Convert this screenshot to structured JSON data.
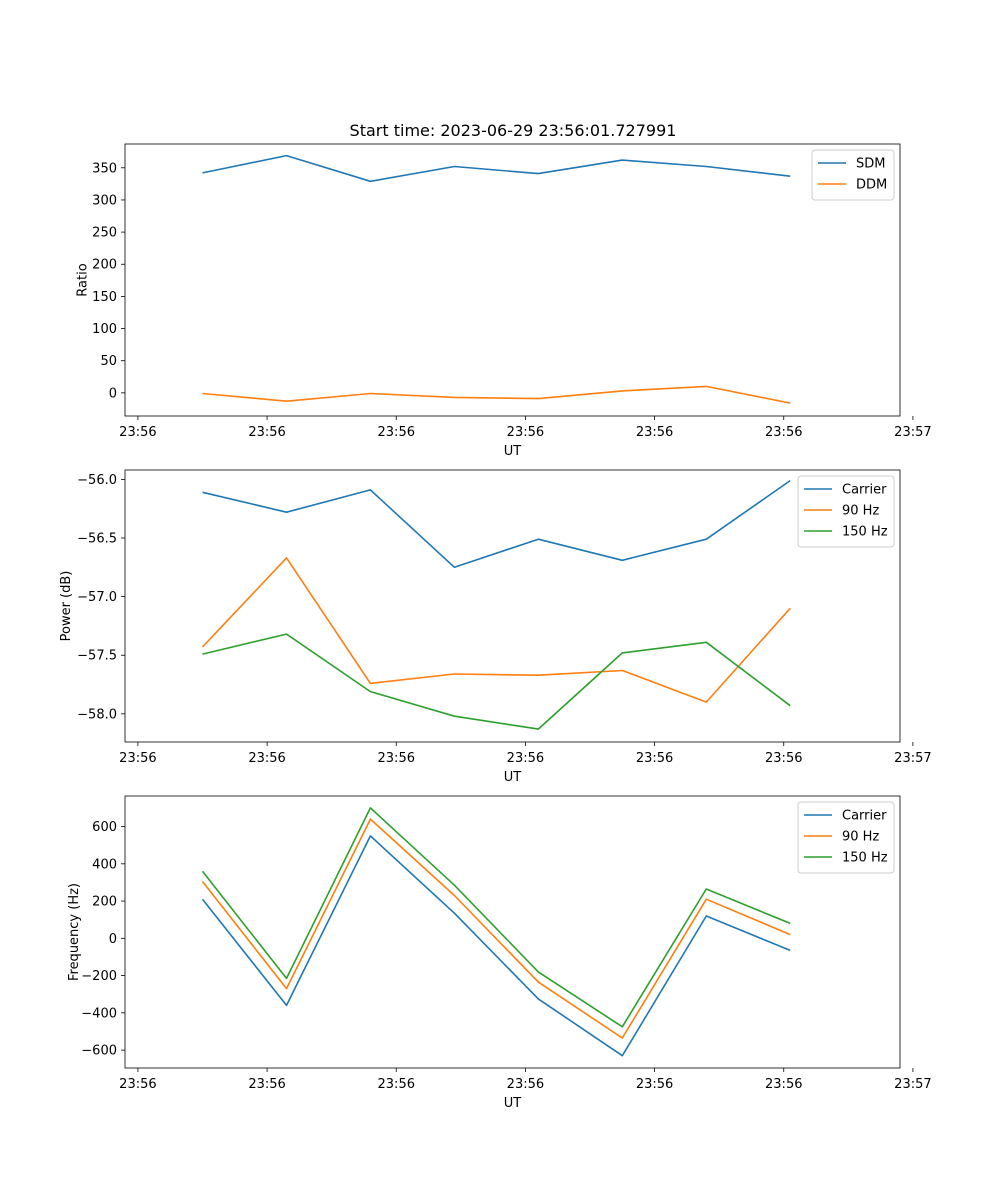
{
  "figure": {
    "title": "Start time: 2023-06-29 23:56:01.727991"
  },
  "chart_data": [
    {
      "type": "line",
      "xlabel": "UT",
      "ylabel": "Ratio",
      "x": [
        0.5,
        1.15,
        1.8,
        2.45,
        3.1,
        3.75,
        4.4,
        5.05
      ],
      "xlim": [
        -0.1,
        5.9
      ],
      "xticks": [
        0,
        1,
        2,
        3,
        4,
        5,
        6
      ],
      "xtick_labels": [
        "23:56",
        "23:56",
        "23:56",
        "23:56",
        "23:56",
        "23:56",
        "23:57"
      ],
      "ylim": [
        -36,
        387
      ],
      "yticks": [
        0,
        50,
        100,
        150,
        200,
        250,
        300,
        350
      ],
      "grid": false,
      "legend": "upper right",
      "series": [
        {
          "name": "SDM",
          "color": "#1f77b4",
          "values": [
            342,
            369,
            329,
            352,
            341,
            362,
            352,
            337
          ]
        },
        {
          "name": "DDM",
          "color": "#ff7f0e",
          "values": [
            -1,
            -13,
            -1,
            -7,
            -9,
            3,
            10,
            -16
          ]
        }
      ]
    },
    {
      "type": "line",
      "xlabel": "UT",
      "ylabel": "Power (dB)",
      "x": [
        0.5,
        1.15,
        1.8,
        2.45,
        3.1,
        3.75,
        4.4,
        5.05
      ],
      "xlim": [
        -0.1,
        5.9
      ],
      "xticks": [
        0,
        1,
        2,
        3,
        4,
        5,
        6
      ],
      "xtick_labels": [
        "23:56",
        "23:56",
        "23:56",
        "23:56",
        "23:56",
        "23:56",
        "23:57"
      ],
      "ylim": [
        -58.24,
        -55.92
      ],
      "yticks": [
        -58.0,
        -57.5,
        -57.0,
        -56.5,
        -56.0
      ],
      "ytick_labels": [
        "−58.0",
        "−57.5",
        "−57.0",
        "−56.5",
        "−56.0"
      ],
      "grid": false,
      "legend": "upper right",
      "series": [
        {
          "name": "Carrier",
          "color": "#1f77b4",
          "values": [
            -56.11,
            -56.28,
            -56.09,
            -56.75,
            -56.51,
            -56.69,
            -56.51,
            -56.01
          ]
        },
        {
          "name": "90 Hz",
          "color": "#ff7f0e",
          "values": [
            -57.43,
            -56.67,
            -57.74,
            -57.66,
            -57.67,
            -57.63,
            -57.9,
            -57.1
          ]
        },
        {
          "name": "150 Hz",
          "color": "#2ca02c",
          "values": [
            -57.49,
            -57.32,
            -57.81,
            -58.02,
            -58.13,
            -57.48,
            -57.39,
            -57.93
          ]
        }
      ]
    },
    {
      "type": "line",
      "xlabel": "UT",
      "ylabel": "Frequency (Hz)",
      "x": [
        0.5,
        1.15,
        1.8,
        2.45,
        3.1,
        3.75,
        4.4,
        5.05
      ],
      "xlim": [
        -0.1,
        5.9
      ],
      "xticks": [
        0,
        1,
        2,
        3,
        4,
        5,
        6
      ],
      "xtick_labels": [
        "23:56",
        "23:56",
        "23:56",
        "23:56",
        "23:56",
        "23:56",
        "23:57"
      ],
      "ylim": [
        -696,
        764
      ],
      "yticks": [
        -600,
        -400,
        -200,
        0,
        200,
        400,
        600
      ],
      "ytick_labels": [
        "−600",
        "−400",
        "−200",
        "0",
        "200",
        "400",
        "600"
      ],
      "grid": false,
      "legend": "upper right",
      "series": [
        {
          "name": "Carrier",
          "color": "#1f77b4",
          "values": [
            210,
            -360,
            550,
            135,
            -325,
            -630,
            120,
            -65
          ]
        },
        {
          "name": "90 Hz",
          "color": "#ff7f0e",
          "values": [
            305,
            -270,
            640,
            230,
            -235,
            -535,
            210,
            20
          ]
        },
        {
          "name": "150 Hz",
          "color": "#2ca02c",
          "values": [
            360,
            -215,
            700,
            285,
            -180,
            -475,
            265,
            80
          ]
        }
      ]
    }
  ]
}
